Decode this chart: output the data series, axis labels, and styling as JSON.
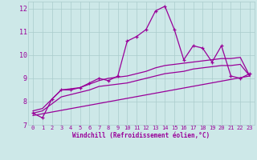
{
  "title": "",
  "xlabel": "Windchill (Refroidissement éolien,°C)",
  "bg_color": "#cde8e8",
  "grid_color": "#aacccc",
  "line_color": "#990099",
  "xlim": [
    -0.5,
    23.5
  ],
  "ylim": [
    7,
    12.3
  ],
  "xticks": [
    0,
    1,
    2,
    3,
    4,
    5,
    6,
    7,
    8,
    9,
    10,
    11,
    12,
    13,
    14,
    15,
    16,
    17,
    18,
    19,
    20,
    21,
    22,
    23
  ],
  "yticks": [
    7,
    8,
    9,
    10,
    11,
    12
  ],
  "series1_x": [
    0,
    1,
    2,
    3,
    4,
    5,
    6,
    7,
    8,
    9,
    10,
    11,
    12,
    13,
    14,
    15,
    16,
    17,
    18,
    19,
    20,
    21,
    22,
    23
  ],
  "series1_y": [
    7.5,
    7.3,
    8.1,
    8.5,
    8.5,
    8.6,
    8.8,
    9.0,
    8.9,
    9.1,
    10.6,
    10.8,
    11.1,
    11.9,
    12.1,
    11.1,
    9.8,
    10.4,
    10.3,
    9.7,
    10.4,
    9.1,
    9.0,
    9.2
  ],
  "series2_x": [
    0,
    1,
    2,
    3,
    4,
    5,
    6,
    7,
    8,
    9,
    10,
    11,
    12,
    13,
    14,
    15,
    16,
    17,
    18,
    19,
    20,
    21,
    22,
    23
  ],
  "series2_y": [
    7.6,
    7.7,
    8.1,
    8.5,
    8.55,
    8.6,
    8.75,
    8.9,
    9.0,
    9.05,
    9.1,
    9.2,
    9.3,
    9.45,
    9.55,
    9.6,
    9.65,
    9.7,
    9.75,
    9.8,
    9.85,
    9.85,
    9.9,
    9.1
  ],
  "series3_x": [
    0,
    1,
    2,
    3,
    4,
    5,
    6,
    7,
    8,
    9,
    10,
    11,
    12,
    13,
    14,
    15,
    16,
    17,
    18,
    19,
    20,
    21,
    22,
    23
  ],
  "series3_y": [
    7.5,
    7.6,
    7.9,
    8.2,
    8.3,
    8.4,
    8.5,
    8.65,
    8.7,
    8.75,
    8.8,
    8.9,
    9.0,
    9.1,
    9.2,
    9.25,
    9.3,
    9.4,
    9.45,
    9.5,
    9.55,
    9.55,
    9.6,
    9.1
  ],
  "series4_x": [
    0,
    23
  ],
  "series4_y": [
    7.4,
    9.1
  ]
}
